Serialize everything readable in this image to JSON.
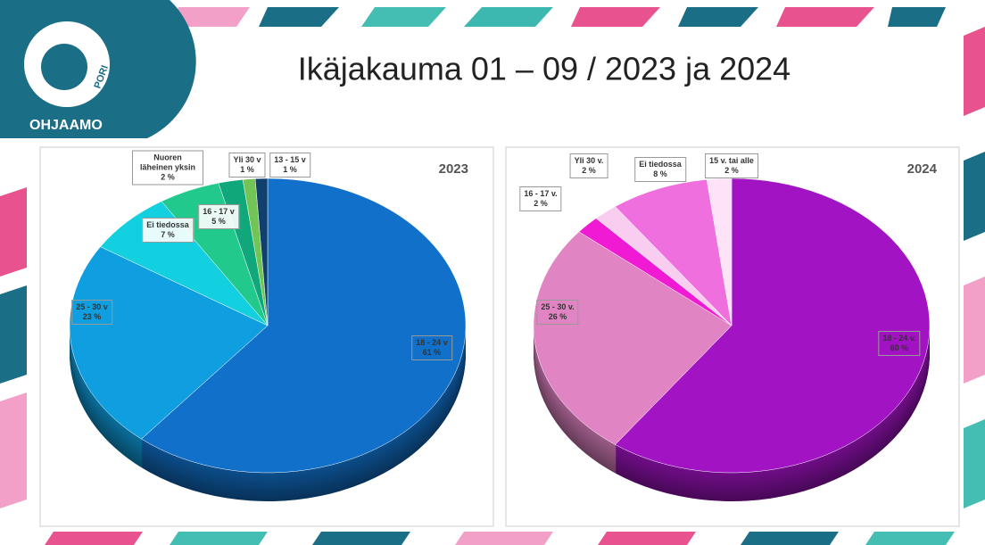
{
  "header": {
    "title": "Ikäjakauma 01 – 09 / 2023 ja 2024"
  },
  "logo": {
    "name": "OHJAAMO",
    "city": "PORI"
  },
  "chart_data": [
    {
      "type": "pie",
      "title": "2023",
      "categories": [
        "18 - 24 v",
        "25 - 30 v",
        "Ei tiedossa",
        "16 - 17 v",
        "Nuoren läheinen yksin",
        "Yli 30 v",
        "13 - 15 v"
      ],
      "values": [
        61,
        23,
        7,
        5,
        2,
        1,
        1
      ],
      "value_labels": [
        "61 %",
        "23 %",
        "7 %",
        "5 %",
        "2 %",
        "1 %",
        "1 %"
      ],
      "colors": [
        "#1170c9",
        "#0f9fe0",
        "#12d0e0",
        "#22c98c",
        "#10a87a",
        "#72c455",
        "#12406e"
      ]
    },
    {
      "type": "pie",
      "title": "2024",
      "categories": [
        "18 - 24 v.",
        "25 - 30 v.",
        "16 - 17 v.",
        "Yli 30 v.",
        "Ei tiedossa",
        "15 v. tai alle"
      ],
      "values": [
        60,
        26,
        2,
        2,
        8,
        2
      ],
      "value_labels": [
        "60 %",
        "26 %",
        "2 %",
        "2 %",
        "8 %",
        "2 %"
      ],
      "colors": [
        "#a213c4",
        "#e184c4",
        "#f01ad4",
        "#f8cdf0",
        "#ef6fdf",
        "#fde2f8"
      ]
    }
  ]
}
